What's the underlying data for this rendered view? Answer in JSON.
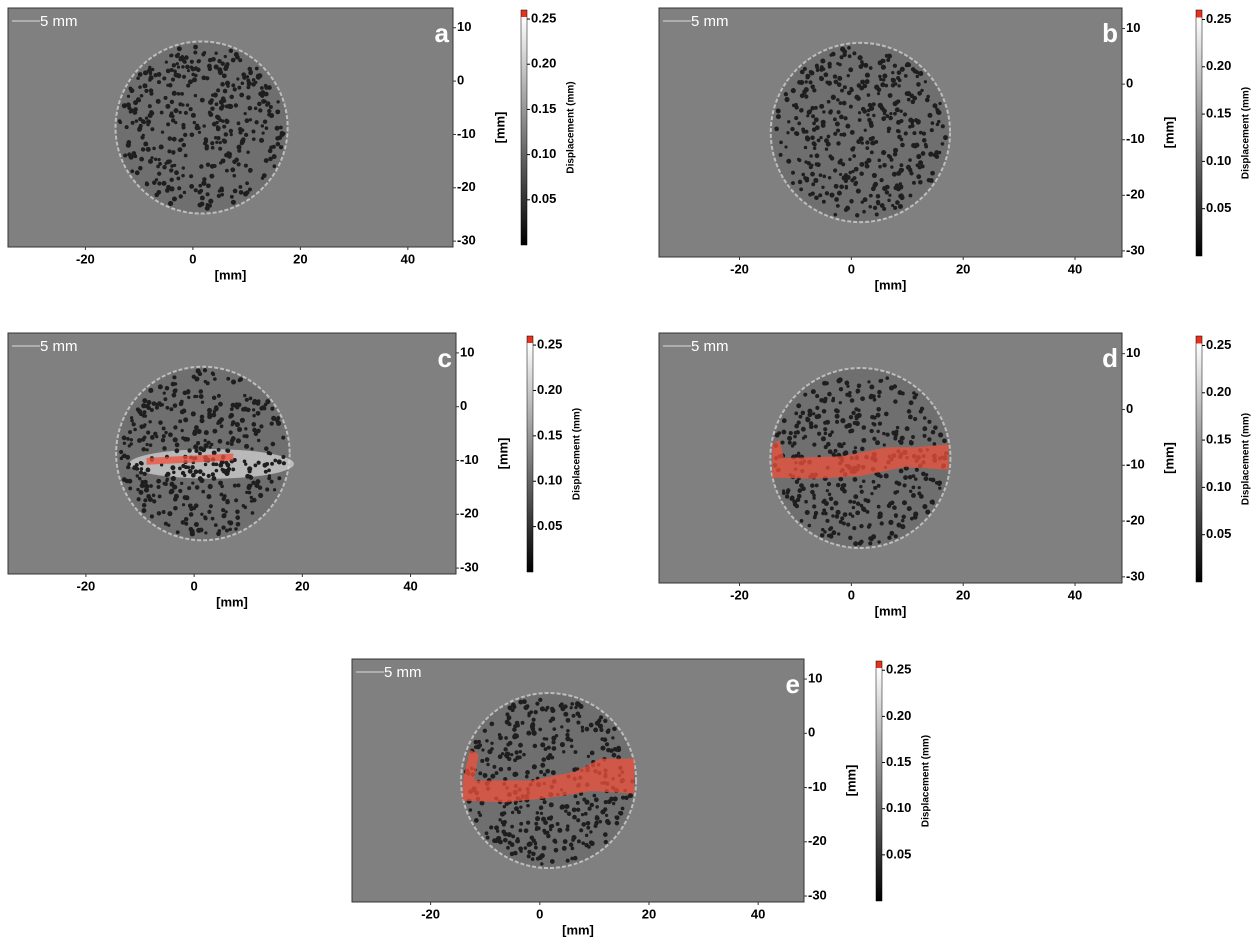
{
  "chart_data": [
    {
      "type": "image",
      "panel_label": "a",
      "scale_bar": "5 mm",
      "xlabel": "[mm]",
      "ylabel": "[mm]",
      "colorbar_label": "Displacement (mm)",
      "xlim": [
        -34.4,
        48.4
      ],
      "ylim": [
        -31.1,
        13.7
      ],
      "xticks": [
        -20,
        0,
        20,
        40
      ],
      "yticks": [
        10,
        0,
        -10,
        -20,
        -30
      ],
      "clim": [
        0,
        0.26
      ],
      "cticks": [
        0.05,
        {
          "value": 0.1,
          "label": "0.10"
        },
        0.15,
        {
          "value": 0.2,
          "label": "0.20"
        },
        0.25
      ]
    },
    {
      "type": "image",
      "panel_label": "b",
      "scale_bar": "5 mm",
      "xlabel": "[mm]",
      "ylabel": "[mm]",
      "colorbar_label": "Displacement (mm)",
      "xlim": [
        -34.4,
        48.4
      ],
      "ylim": [
        -31.1,
        13.7
      ],
      "xticks": [
        -20,
        0,
        20,
        40
      ],
      "yticks": [
        10,
        0,
        -10,
        -20,
        -30
      ],
      "clim": [
        0,
        0.26
      ],
      "cticks": [
        0.05,
        {
          "value": 0.1,
          "label": "0.10"
        },
        0.15,
        {
          "value": 0.2,
          "label": "0.20"
        },
        0.25
      ]
    },
    {
      "type": "image",
      "panel_label": "c",
      "scale_bar": "5 mm",
      "xlabel": "[mm]",
      "ylabel": "[mm]",
      "colorbar_label": "Displacement (mm)",
      "xlim": [
        -34.4,
        48.4
      ],
      "ylim": [
        -31.1,
        13.7
      ],
      "xticks": [
        -20,
        0,
        20,
        40
      ],
      "yticks": [
        10,
        0,
        -10,
        -20,
        -30
      ],
      "clim": [
        0,
        0.26
      ],
      "cticks": [
        0.05,
        {
          "value": 0.1,
          "label": "0.10"
        },
        0.15,
        {
          "value": 0.2,
          "label": "0.20"
        },
        0.25
      ]
    },
    {
      "type": "image",
      "panel_label": "d",
      "scale_bar": "5 mm",
      "xlabel": "[mm]",
      "ylabel": "[mm]",
      "colorbar_label": "Displacement (mm)",
      "xlim": [
        -34.4,
        48.4
      ],
      "ylim": [
        -31.1,
        13.7
      ],
      "xticks": [
        -20,
        0,
        20,
        40
      ],
      "yticks": [
        10,
        0,
        -10,
        -20,
        -30
      ],
      "clim": [
        0,
        0.26
      ],
      "cticks": [
        0.05,
        {
          "value": 0.1,
          "label": "0.10"
        },
        0.15,
        {
          "value": 0.2,
          "label": "0.20"
        },
        0.25
      ]
    },
    {
      "type": "image",
      "panel_label": "e",
      "scale_bar": "5 mm",
      "xlabel": "[mm]",
      "ylabel": "[mm]",
      "colorbar_label": "Displacement (mm)",
      "xlim": [
        -34.4,
        48.4
      ],
      "ylim": [
        -31.1,
        13.7
      ],
      "xticks": [
        -20,
        0,
        20,
        40
      ],
      "yticks": [
        10,
        0,
        -10,
        -20,
        -30
      ],
      "clim": [
        0,
        0.26
      ],
      "cticks": [
        0.05,
        {
          "value": 0.1,
          "label": "0.10"
        },
        0.15,
        {
          "value": 0.2,
          "label": "0.20"
        },
        0.25
      ]
    }
  ]
}
